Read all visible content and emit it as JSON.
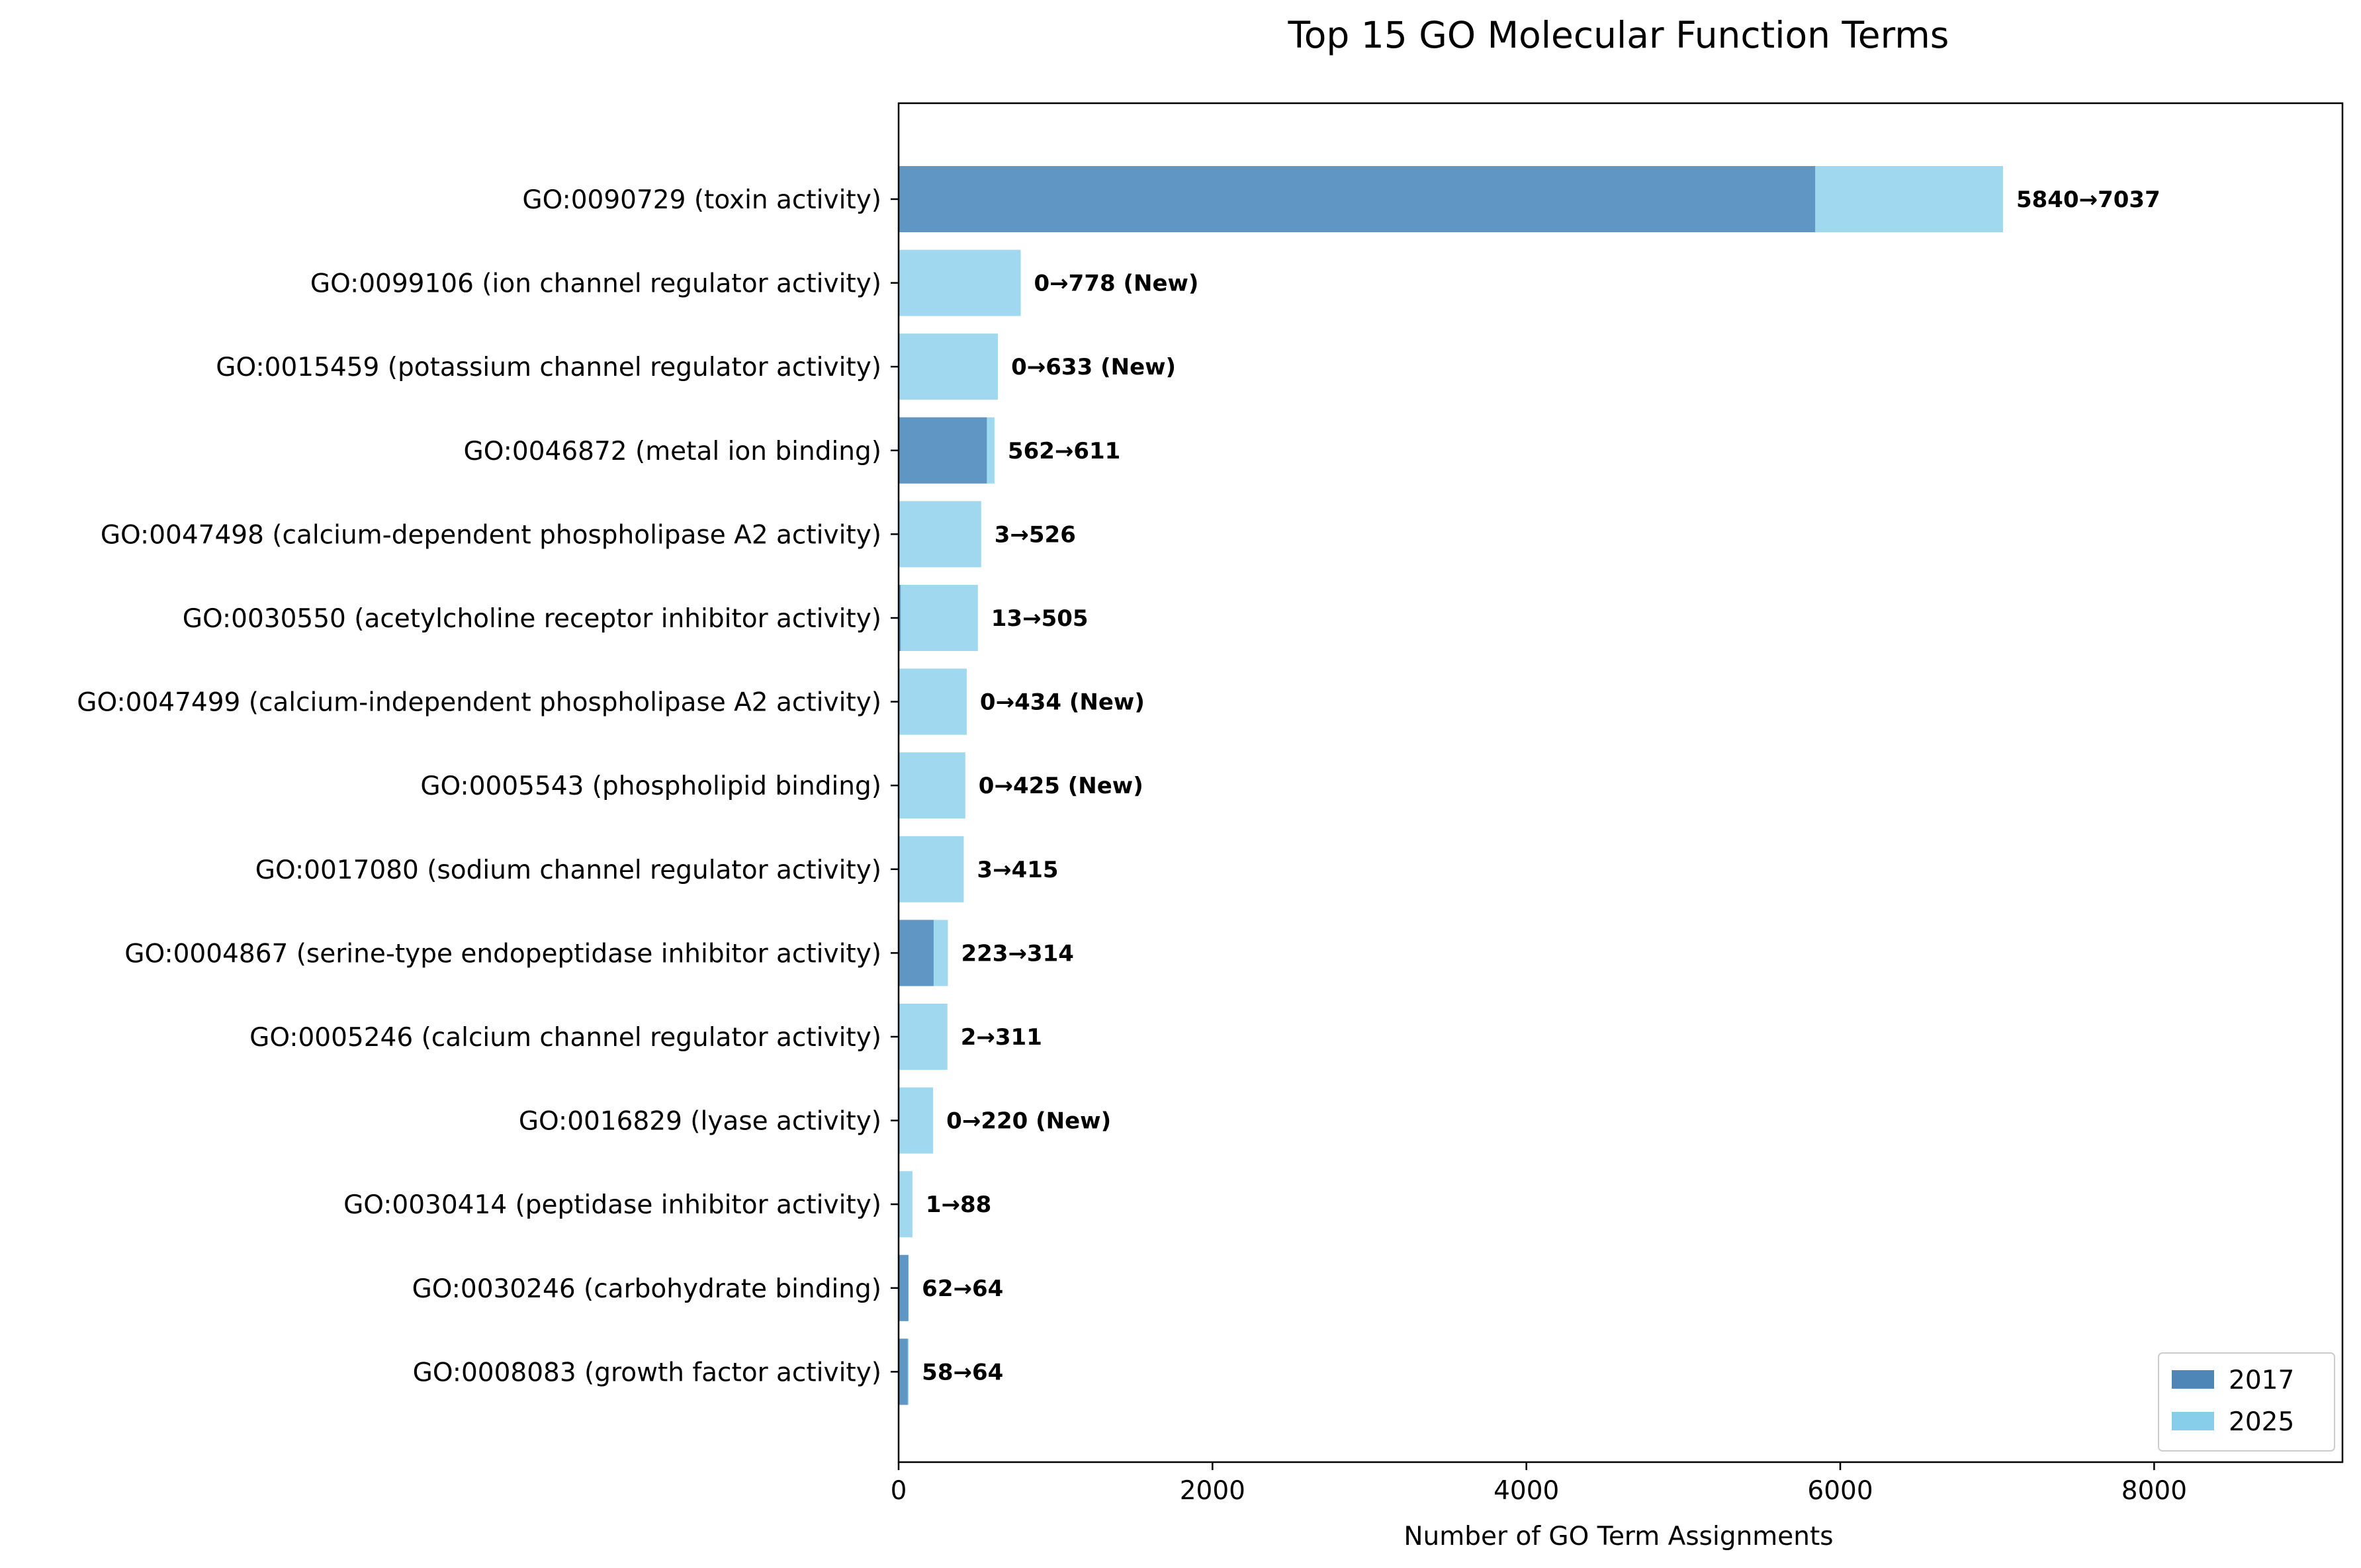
{
  "chart_data": {
    "type": "bar",
    "orientation": "horizontal",
    "title": "Top 15 GO Molecular Function Terms",
    "xlabel": "Number of GO Term Assignments",
    "ylabel": "",
    "xlim": [
      0,
      9200
    ],
    "xticks": [
      0,
      2000,
      4000,
      6000,
      8000
    ],
    "grid": false,
    "legend_position": "bottom-right",
    "categories": [
      "GO:0090729 (toxin activity)",
      "GO:0099106 (ion channel regulator activity)",
      "GO:0015459 (potassium channel regulator activity)",
      "GO:0046872 (metal ion binding)",
      "GO:0047498 (calcium-dependent phospholipase A2 activity)",
      "GO:0030550 (acetylcholine receptor inhibitor activity)",
      "GO:0047499 (calcium-independent phospholipase A2 activity)",
      "GO:0005543 (phospholipid binding)",
      "GO:0017080 (sodium channel regulator activity)",
      "GO:0004867 (serine-type endopeptidase inhibitor activity)",
      "GO:0005246 (calcium channel regulator activity)",
      "GO:0016829 (lyase activity)",
      "GO:0030414 (peptidase inhibitor activity)",
      "GO:0030246 (carbohydrate binding)",
      "GO:0008083 (growth factor activity)"
    ],
    "series": [
      {
        "name": "2017",
        "color": "#4f86b8",
        "values": [
          5840,
          0,
          0,
          562,
          3,
          13,
          0,
          0,
          3,
          223,
          2,
          0,
          1,
          62,
          58
        ]
      },
      {
        "name": "2025",
        "color": "#87ceeb",
        "values": [
          7037,
          778,
          633,
          611,
          526,
          505,
          434,
          425,
          415,
          314,
          311,
          220,
          88,
          64,
          64
        ]
      }
    ],
    "data_labels": [
      "5840→7037",
      "0→778 (New)",
      "0→633 (New)",
      "562→611",
      "3→526",
      "13→505",
      "0→434 (New)",
      "0→425 (New)",
      "3→415",
      "223→314",
      "2→311",
      "0→220 (New)",
      "1→88",
      "62→64",
      "58→64"
    ]
  }
}
